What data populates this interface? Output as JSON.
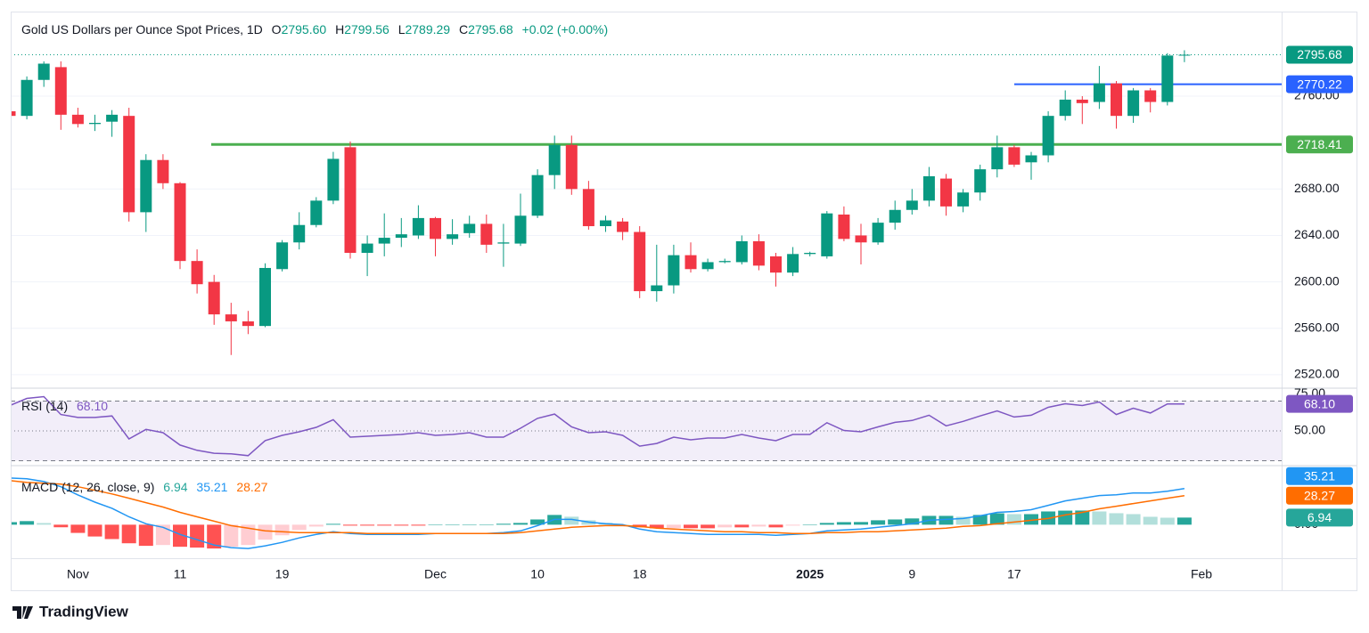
{
  "chart_data": {
    "type": "candlestick",
    "title": "Gold US Dollars per Ounce Spot Prices, 1D",
    "legend": [
      [
        "O",
        "2795.60"
      ],
      [
        "H",
        "2799.56"
      ],
      [
        "L",
        "2789.29"
      ],
      [
        "C",
        "2795.68"
      ]
    ],
    "change": "+0.02 (+0.00%)",
    "categories": [
      null,
      null,
      null,
      null,
      "Nov",
      null,
      null,
      null,
      null,
      null,
      "11",
      null,
      null,
      null,
      null,
      null,
      "19",
      null,
      null,
      null,
      null,
      null,
      null,
      null,
      null,
      "Dec",
      null,
      null,
      null,
      null,
      null,
      "10",
      null,
      null,
      null,
      null,
      null,
      "18",
      null,
      null,
      null,
      null,
      null,
      null,
      null,
      null,
      null,
      "2025",
      null,
      null,
      null,
      null,
      null,
      "9",
      null,
      null,
      null,
      null,
      null,
      "17",
      null,
      null,
      null,
      null,
      null,
      null,
      null,
      null,
      null,
      null,
      "Feb"
    ],
    "open": [
      2747,
      2743,
      2774,
      2785,
      2744,
      2736,
      2738,
      2743,
      2660,
      2705,
      2685,
      2618,
      2600,
      2572,
      2566,
      2562,
      2611,
      2634,
      2649,
      2670,
      2716,
      2625,
      2633,
      2638,
      2640,
      2655,
      2637,
      2642,
      2650,
      2633,
      2633,
      2657,
      2692,
      2718,
      2680,
      2648,
      2652,
      2643,
      2592,
      2597,
      2623,
      2611,
      2617,
      2617,
      2635,
      2622,
      2608,
      2624,
      2622,
      2658,
      2640,
      2634,
      2651,
      2662,
      2670,
      2689,
      2665,
      2677,
      2697,
      2716,
      2703,
      2709,
      2743,
      2757,
      2755,
      2771,
      2743,
      2765,
      2755,
      2795.6,
      null
    ],
    "high": [
      2750,
      2777,
      2790,
      2790,
      2750,
      2744,
      2748,
      2750,
      2710,
      2710,
      2686,
      2628,
      2606,
      2582,
      2575,
      2616,
      2636,
      2660,
      2673,
      2712,
      2721,
      2640,
      2659,
      2655,
      2666,
      2656,
      2654,
      2657,
      2658,
      2650,
      2676,
      2697,
      2726,
      2726,
      2687,
      2657,
      2655,
      2648,
      2632,
      2632,
      2634,
      2620,
      2620,
      2640,
      2641,
      2625,
      2630,
      2626,
      2661,
      2665,
      2650,
      2655,
      2670,
      2680,
      2699,
      2693,
      2680,
      2701,
      2726,
      2718,
      2712,
      2747,
      2765,
      2760,
      2786,
      2773,
      2767,
      2767,
      2797,
      2799.56,
      null
    ],
    "low": [
      2740,
      2740,
      2768,
      2731,
      2733,
      2730,
      2725,
      2652,
      2643,
      2680,
      2611,
      2590,
      2563,
      2537,
      2555,
      2561,
      2609,
      2628,
      2647,
      2667,
      2620,
      2605,
      2622,
      2630,
      2637,
      2622,
      2632,
      2638,
      2625,
      2613,
      2631,
      2655,
      2680,
      2675,
      2645,
      2643,
      2636,
      2586,
      2583,
      2590,
      2608,
      2609,
      2616,
      2615,
      2610,
      2596,
      2605,
      2622,
      2620,
      2635,
      2615,
      2632,
      2645,
      2658,
      2665,
      2657,
      2660,
      2670,
      2690,
      2699,
      2688,
      2703,
      2739,
      2736,
      2749,
      2732,
      2737,
      2746,
      2752,
      2789.29,
      null
    ],
    "close": [
      2743,
      2774,
      2788,
      2744,
      2736,
      2737,
      2744,
      2660,
      2705,
      2685,
      2618,
      2598,
      2572,
      2566,
      2562,
      2612,
      2634,
      2649,
      2670,
      2706,
      2625,
      2633,
      2638,
      2641,
      2655,
      2637,
      2641,
      2650,
      2632,
      2634,
      2657,
      2692,
      2718,
      2680,
      2648,
      2653,
      2643,
      2592,
      2597,
      2623,
      2611,
      2617,
      2618,
      2635,
      2614,
      2608,
      2624,
      2625,
      2659,
      2637,
      2634,
      2651,
      2662,
      2670,
      2691,
      2665,
      2677,
      2697,
      2716,
      2701,
      2709,
      2743,
      2757,
      2754,
      2771,
      2743,
      2765,
      2755,
      2795,
      2795.68,
      null
    ],
    "up_color": "#089981",
    "down_color": "#f23645",
    "ylim": [
      2509.2,
      2832.1
    ],
    "yticks": [
      {
        "value": 2520,
        "label": "2520.00"
      },
      {
        "value": 2560,
        "label": "2560.00"
      },
      {
        "value": 2600,
        "label": "2600.00"
      },
      {
        "value": 2640,
        "label": "2640.00"
      },
      {
        "value": 2680,
        "label": "2680.00"
      },
      {
        "value": 2760,
        "label": "2760.00"
      }
    ],
    "grid": true,
    "levels": [
      {
        "value": 2770.22,
        "color": "#2962ff"
      },
      {
        "value": 2718.41,
        "color": "#4caf50"
      }
    ],
    "rsi": {
      "title": "RSI (14)",
      "color": "#7e57c2",
      "values": [
        67,
        71.8,
        73,
        61,
        59,
        59,
        60,
        44.6,
        51,
        48.8,
        40.5,
        37,
        35,
        34.6,
        33.4,
        43.5,
        47,
        49.4,
        52.4,
        57.5,
        45.8,
        46.4,
        47,
        47.6,
        48.8,
        47,
        47.6,
        48.8,
        45.8,
        45.8,
        51.8,
        58.4,
        61.3,
        52.7,
        48.8,
        49.4,
        47,
        39.8,
        41.6,
        45.8,
        44,
        45.2,
        45.2,
        47.6,
        45.2,
        43.4,
        47.6,
        47.6,
        55.5,
        50.3,
        49.4,
        52.7,
        55.7,
        57,
        60.5,
        53.4,
        56.4,
        60,
        63.4,
        59.3,
        60.5,
        65.8,
        68.2,
        67,
        69.4,
        61,
        65.2,
        62,
        68.1,
        68.1,
        null
      ],
      "value_labels": [
        null,
        null,
        null,
        null,
        null,
        null,
        null,
        null,
        null,
        null,
        null,
        null,
        null,
        null,
        null,
        null,
        null,
        null,
        null,
        null,
        null,
        null,
        null,
        null,
        null,
        null,
        null,
        null,
        null,
        null,
        null,
        null,
        null,
        null,
        null,
        null,
        null,
        null,
        null,
        null,
        null,
        null,
        null,
        null,
        null,
        null,
        null,
        null,
        null,
        null,
        null,
        null,
        null,
        null,
        null,
        null,
        null,
        null,
        null,
        null,
        null,
        null,
        null,
        null,
        null,
        null,
        null,
        null,
        null,
        "68.10",
        null
      ],
      "ylim": [
        27.3,
        78.06
      ],
      "yticks": [
        {
          "value": 75,
          "label": "75.00"
        },
        {
          "value": 50,
          "label": "50.00"
        }
      ],
      "levels": [
        70,
        50,
        30
      ]
    },
    "macd": {
      "title": "MACD (12, 26, close, 9)",
      "ylim": [
        -31.8,
        56.7
      ],
      "yticks": [
        {
          "value": 0,
          "label": "0.00"
        }
      ],
      "histogram": {
        "colors": [
          "#26a69a",
          "#b2dfdb",
          "#ff5252",
          "#ffcdd2"
        ],
        "values": [
          2.5,
          3.5,
          1.6,
          -2.5,
          -8,
          -11.5,
          -14,
          -18.1,
          -20.6,
          -19.8,
          -21.5,
          -22.3,
          -23.2,
          -21.4,
          -19.8,
          -14.6,
          -10.3,
          -5.2,
          -1.8,
          0.8,
          -0.9,
          -0.9,
          -0.9,
          -0.9,
          -0.9,
          0,
          0,
          0,
          0,
          0.9,
          1.7,
          5.1,
          9.5,
          7.8,
          4.3,
          1.8,
          0,
          -2.6,
          -3.5,
          -3.4,
          -3.4,
          -3.5,
          -2.6,
          -2.6,
          -1.8,
          -2.6,
          -0.9,
          0,
          1.7,
          2.5,
          2.6,
          4.3,
          5.1,
          6.1,
          8.6,
          8.6,
          7.7,
          9.5,
          11.1,
          10.3,
          10.3,
          12.9,
          13.7,
          13.8,
          12.9,
          11.2,
          10.3,
          7.7,
          6.8,
          6.94,
          null
        ]
      },
      "series": [
        {
          "color": "#2196f3",
          "values": [
            45.5,
            44.7,
            42,
            37,
            29,
            22,
            16,
            7.7,
            0.9,
            -2.6,
            -9.5,
            -14.6,
            -19.8,
            -22.3,
            -23.2,
            -20.6,
            -17.2,
            -12.9,
            -9.5,
            -6.9,
            -8.6,
            -9.5,
            -9.5,
            -9.5,
            -9.5,
            -8.6,
            -8.6,
            -8.6,
            -8.6,
            -7.7,
            -6,
            -0.9,
            5.2,
            5.2,
            2.6,
            0.9,
            0,
            -4.3,
            -6.9,
            -7.7,
            -8.6,
            -9.5,
            -9.5,
            -9.5,
            -9.5,
            -10.3,
            -9.5,
            -8.6,
            -6,
            -5.2,
            -4.3,
            -2.6,
            -0.9,
            0.9,
            4.3,
            5.2,
            6,
            8.6,
            12,
            12.9,
            14.6,
            18.9,
            23.2,
            25.8,
            28.4,
            29.2,
            30.9,
            30.9,
            32.6,
            35.21,
            null
          ]
        },
        {
          "color": "#ff6d00",
          "values": [
            43,
            41.2,
            40.4,
            39.5,
            37,
            33.5,
            30,
            25.8,
            21.5,
            17.2,
            12,
            7.7,
            3.4,
            -0.9,
            -3.4,
            -6,
            -6.9,
            -7.7,
            -7.7,
            -7.7,
            -7.7,
            -8.6,
            -8.6,
            -8.6,
            -8.6,
            -8.6,
            -8.6,
            -8.6,
            -8.6,
            -8.6,
            -7.7,
            -6,
            -4.3,
            -2.6,
            -1.7,
            -0.9,
            -0.9,
            -1.7,
            -3.4,
            -4.3,
            -5.2,
            -6,
            -6.9,
            -6.9,
            -7.7,
            -7.7,
            -8.6,
            -8.6,
            -7.7,
            -7.7,
            -6.9,
            -6.9,
            -6,
            -5.2,
            -4.3,
            -3.4,
            -1.7,
            -0.9,
            0.9,
            2.6,
            4.3,
            6,
            9.5,
            12,
            15.5,
            18,
            20.6,
            23.2,
            25.8,
            28.27,
            null
          ]
        }
      ]
    }
  },
  "footer": {
    "brand": "TradingView"
  }
}
